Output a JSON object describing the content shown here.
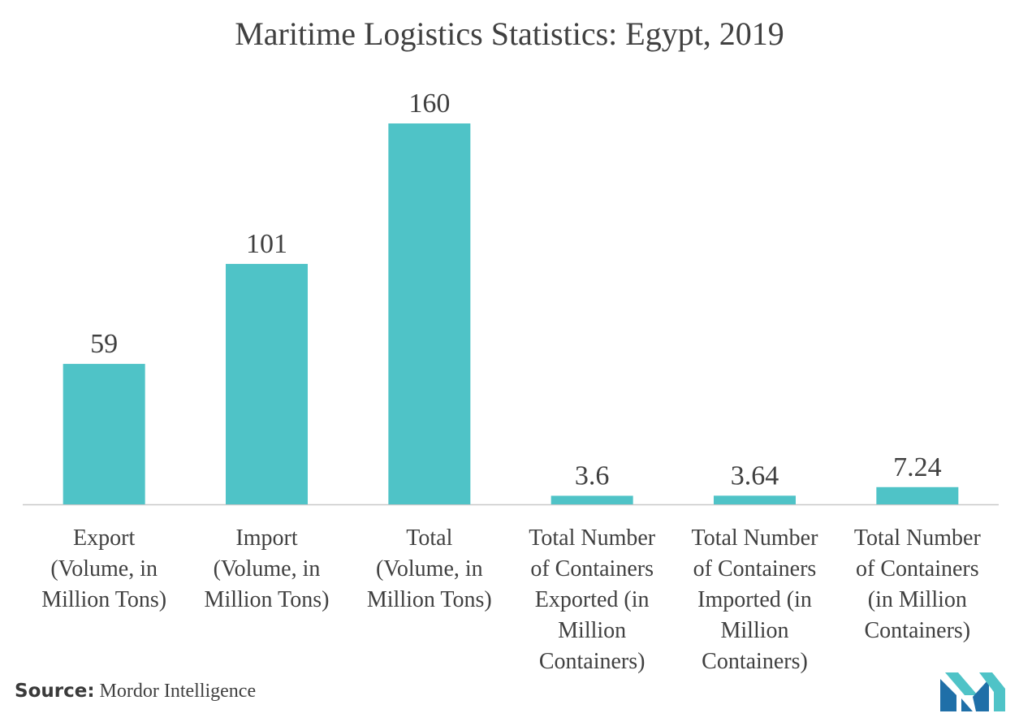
{
  "chart_data": {
    "type": "bar",
    "title": "Maritime Logistics Statistics: Egypt, 2019",
    "categories": [
      [
        "Export",
        "(Volume, in",
        "Million Tons)"
      ],
      [
        "Import",
        "(Volume, in",
        "Million Tons)"
      ],
      [
        "Total",
        "(Volume, in",
        "Million Tons)"
      ],
      [
        "Total Number",
        "of Containers",
        "Exported (in",
        "Million",
        "Containers)"
      ],
      [
        "Total Number",
        "of Containers",
        "Imported (in",
        "Million",
        "Containers)"
      ],
      [
        "Total Number",
        "of Containers",
        "(in Million",
        "Containers)"
      ]
    ],
    "values": [
      59,
      101,
      160,
      3.6,
      3.64,
      7.24
    ],
    "data_labels": [
      "59",
      "101",
      "160",
      "3.6",
      "3.64",
      "7.24"
    ],
    "xlabel": "",
    "ylabel": "",
    "ylim": [
      0,
      160
    ],
    "grid": false,
    "legend": "none",
    "bar_color": "#4fc3c7",
    "axis_color": "#c8c8c8",
    "label_color": "#404040"
  },
  "source": {
    "label": "Source:",
    "text": " Mordor Intelligence"
  },
  "logo": {
    "icon": "mordor-intelligence-logo",
    "colors": [
      "#1f6fa8",
      "#4fc3c7"
    ]
  }
}
